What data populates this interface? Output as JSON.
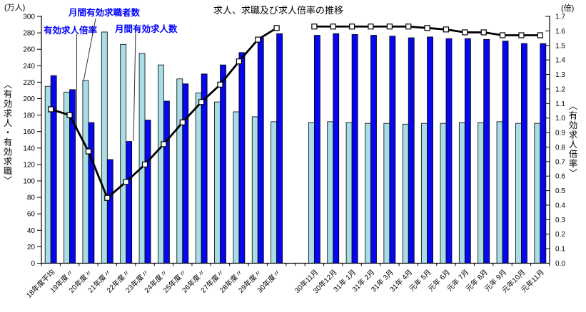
{
  "title": "求人、求職及び求人倍率の推移",
  "left_axis_unit": "(万人)",
  "right_axis_unit": "(倍)",
  "left_axis_label": "〈有効求人・有効求職〉",
  "right_axis_label": "〈有効求人倍率〉",
  "annotations": {
    "ratio_label": "有効求人倍率",
    "seekers_label": "月間有効求職者数",
    "openings_label": "月間有効求人数"
  },
  "colors": {
    "seekers_bar": "#a8dde6",
    "openings_bar": "#0707ee",
    "ratio_line": "#000000",
    "marker_fill": "#ffffff",
    "annotation_text": "#0000ff",
    "axis": "#000000"
  },
  "chart_data": {
    "type": "bar+line",
    "left_axis": {
      "min": 0,
      "max": 300,
      "step": 20,
      "unit": "万人"
    },
    "right_axis": {
      "min": 0.0,
      "max": 1.7,
      "step": 0.1,
      "unit": "倍"
    },
    "grid": false,
    "series_names": {
      "seekers": "月間有効求職者数",
      "openings": "月間有効求人数",
      "ratio": "有効求人倍率"
    },
    "sections": [
      {
        "name": "fiscal-year-averages",
        "categories": [
          "18年度平均",
          "19年度〃",
          "20年度〃",
          "21年度〃",
          "22年度〃",
          "23年度〃",
          "24年度〃",
          "25年度〃",
          "26年度〃",
          "27年度〃",
          "28年度〃",
          "29年度〃",
          "30年度〃"
        ],
        "seekers": [
          215,
          208,
          222,
          281,
          266,
          255,
          241,
          224,
          207,
          196,
          184,
          178,
          172
        ],
        "openings": [
          228,
          211,
          171,
          126,
          148,
          174,
          197,
          218,
          230,
          241,
          256,
          274,
          279
        ],
        "ratio": [
          1.06,
          1.02,
          0.77,
          0.45,
          0.56,
          0.68,
          0.82,
          0.97,
          1.11,
          1.23,
          1.39,
          1.54,
          1.62
        ]
      },
      {
        "name": "monthly",
        "categories": [
          "30年11月",
          "30年12月",
          "31年 1月",
          "31年 2月",
          "31年 3月",
          "31年 4月",
          "元年 5月",
          "元年 6月",
          "元年 7月",
          "元年 8月",
          "元年 9月",
          "元年10月",
          "元年11月"
        ],
        "seekers": [
          171,
          172,
          171,
          170,
          170,
          169,
          170,
          170,
          171,
          171,
          172,
          170,
          170
        ],
        "openings": [
          277,
          279,
          278,
          277,
          276,
          274,
          275,
          273,
          273,
          272,
          270,
          267,
          267
        ],
        "ratio": [
          1.63,
          1.63,
          1.63,
          1.63,
          1.63,
          1.63,
          1.62,
          1.61,
          1.59,
          1.59,
          1.57,
          1.57,
          1.57
        ]
      }
    ]
  }
}
